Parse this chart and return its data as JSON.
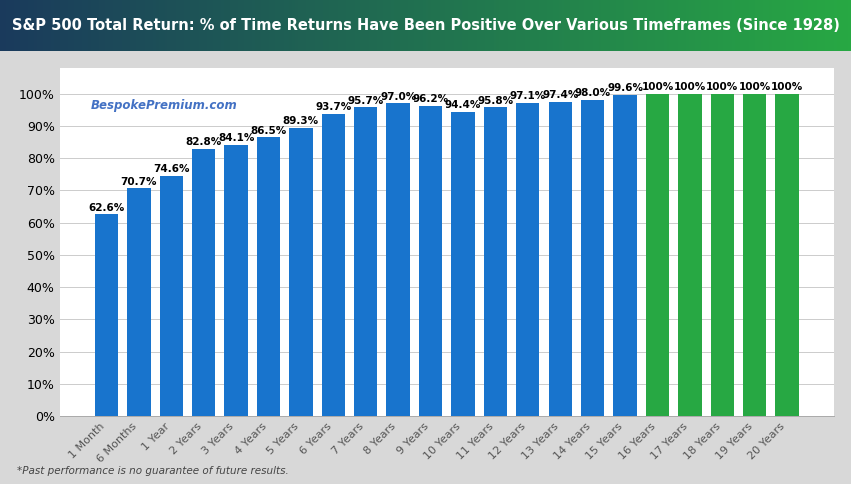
{
  "title": "S&P 500 Total Return: % of Time Returns Have Been Positive Over Various Timeframes (Since 1928)",
  "categories": [
    "1 Month",
    "6 Months",
    "1 Year",
    "2 Years",
    "3 Years",
    "4 Years",
    "5 Years",
    "6 Years",
    "7 Years",
    "8 Years",
    "9 Years",
    "10 Years",
    "11 Years",
    "12 Years",
    "13 Years",
    "14 Years",
    "15 Years",
    "16 Years",
    "17 Years",
    "18 Years",
    "19 Years",
    "20 Years"
  ],
  "values": [
    62.6,
    70.7,
    74.6,
    82.8,
    84.1,
    86.5,
    89.3,
    93.7,
    95.7,
    97.0,
    96.2,
    94.4,
    95.8,
    97.1,
    97.4,
    98.0,
    99.6,
    100.0,
    100.0,
    100.0,
    100.0,
    100.0
  ],
  "bar_colors": [
    "#1874CD",
    "#1874CD",
    "#1874CD",
    "#1874CD",
    "#1874CD",
    "#1874CD",
    "#1874CD",
    "#1874CD",
    "#1874CD",
    "#1874CD",
    "#1874CD",
    "#1874CD",
    "#1874CD",
    "#1874CD",
    "#1874CD",
    "#1874CD",
    "#1874CD",
    "#27a843",
    "#27a843",
    "#27a843",
    "#27a843",
    "#27a843"
  ],
  "title_color_left": "#1a3a5c",
  "title_color_right": "#27a843",
  "title_text_color": "#ffffff",
  "background_color": "#d8d8d8",
  "plot_bg_color": "#ffffff",
  "watermark": "BespokePremium.com",
  "watermark_color": "#4472C4",
  "footnote": "*Past performance is no guarantee of future results.",
  "ylim_max": 108,
  "yticks": [
    0,
    10,
    20,
    30,
    40,
    50,
    60,
    70,
    80,
    90,
    100
  ],
  "title_fontsize": 10.5,
  "label_fontsize": 8,
  "tick_fontsize": 9,
  "value_label_fontsize": 7.5
}
